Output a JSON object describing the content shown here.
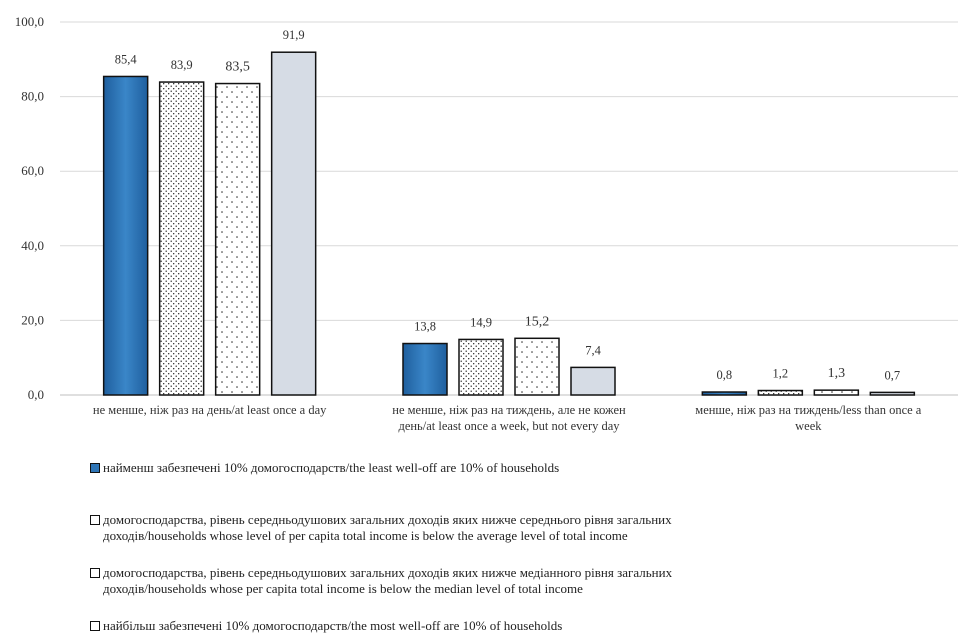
{
  "chart_data": {
    "type": "bar",
    "categories": [
      "не менше, ніж раз на день/at least once a day",
      "не менше, ніж раз на тиждень, але не кожен день/at least once a week, but not every day",
      "менше, ніж раз на тиждень/less than once a week"
    ],
    "category_lines": [
      [
        "не менше, ніж раз на день/at least once a day"
      ],
      [
        "не менше, ніж раз на тиждень, але не кожен",
        "день/at least once a week, but not every day"
      ],
      [
        "менше, ніж раз на тиждень/less than once a",
        "week"
      ]
    ],
    "series": [
      {
        "name": "найменш забезпечені 10% домогосподарств/the least well-off are 10% of households",
        "values": [
          85.4,
          13.8,
          0.8
        ],
        "labels": [
          "85,4",
          "13,8",
          "0,8"
        ],
        "color": "#2e75b6",
        "pattern": "solid"
      },
      {
        "name": "домогосподарства, рівень середньодушових загальних доходів яких нижче середнього рівня загальних доходів/households whose level of per capita total income is below the average level of total income",
        "values": [
          83.9,
          14.9,
          1.2
        ],
        "labels": [
          "83,9",
          "14,9",
          "1,2"
        ],
        "color": "#ffffff",
        "pattern": "dense-dots"
      },
      {
        "name": "домогосподарства, рівень середньодушових загальних доходів яких нижче медіанного рівня загальних доходів/households whose per capita total income is below the median level of total income",
        "values": [
          83.5,
          15.2,
          1.3
        ],
        "labels": [
          "83,5",
          "15,2",
          "1,3"
        ],
        "color": "#ffffff",
        "pattern": "sparse-dots"
      },
      {
        "name": "найбільш забезпечені 10% домогосподарств/the most well-off are 10% of households",
        "values": [
          91.9,
          7.4,
          0.7
        ],
        "labels": [
          "91,9",
          "7,4",
          "0,7"
        ],
        "color": "#d6dce5",
        "pattern": "solid"
      }
    ],
    "ylim": [
      0,
      100
    ],
    "yticks": [
      0,
      20,
      40,
      60,
      80,
      100
    ],
    "ytick_labels": [
      "0,0",
      "20,0",
      "40,0",
      "60,0",
      "80,0",
      "100,0"
    ],
    "grid": true,
    "legend_position": "bottom"
  },
  "legend": {
    "items": [
      {
        "lines": [
          "найменш забезпечені 10% домогосподарств/the least well-off are 10% of households"
        ]
      },
      {
        "lines": [
          "домогосподарства, рівень середньодушових загальних доходів яких нижче середнього рівня загальних",
          "доходів/households whose level of per capita total income is below the average level of total income"
        ]
      },
      {
        "lines": [
          "домогосподарства, рівень середньодушових загальних доходів яких нижче медіанного рівня загальних",
          "доходів/households whose per capita total income is below the median level of total income"
        ]
      },
      {
        "lines": [
          "найбільш забезпечені 10% домогосподарств/the most well-off are 10% of households"
        ]
      }
    ]
  }
}
